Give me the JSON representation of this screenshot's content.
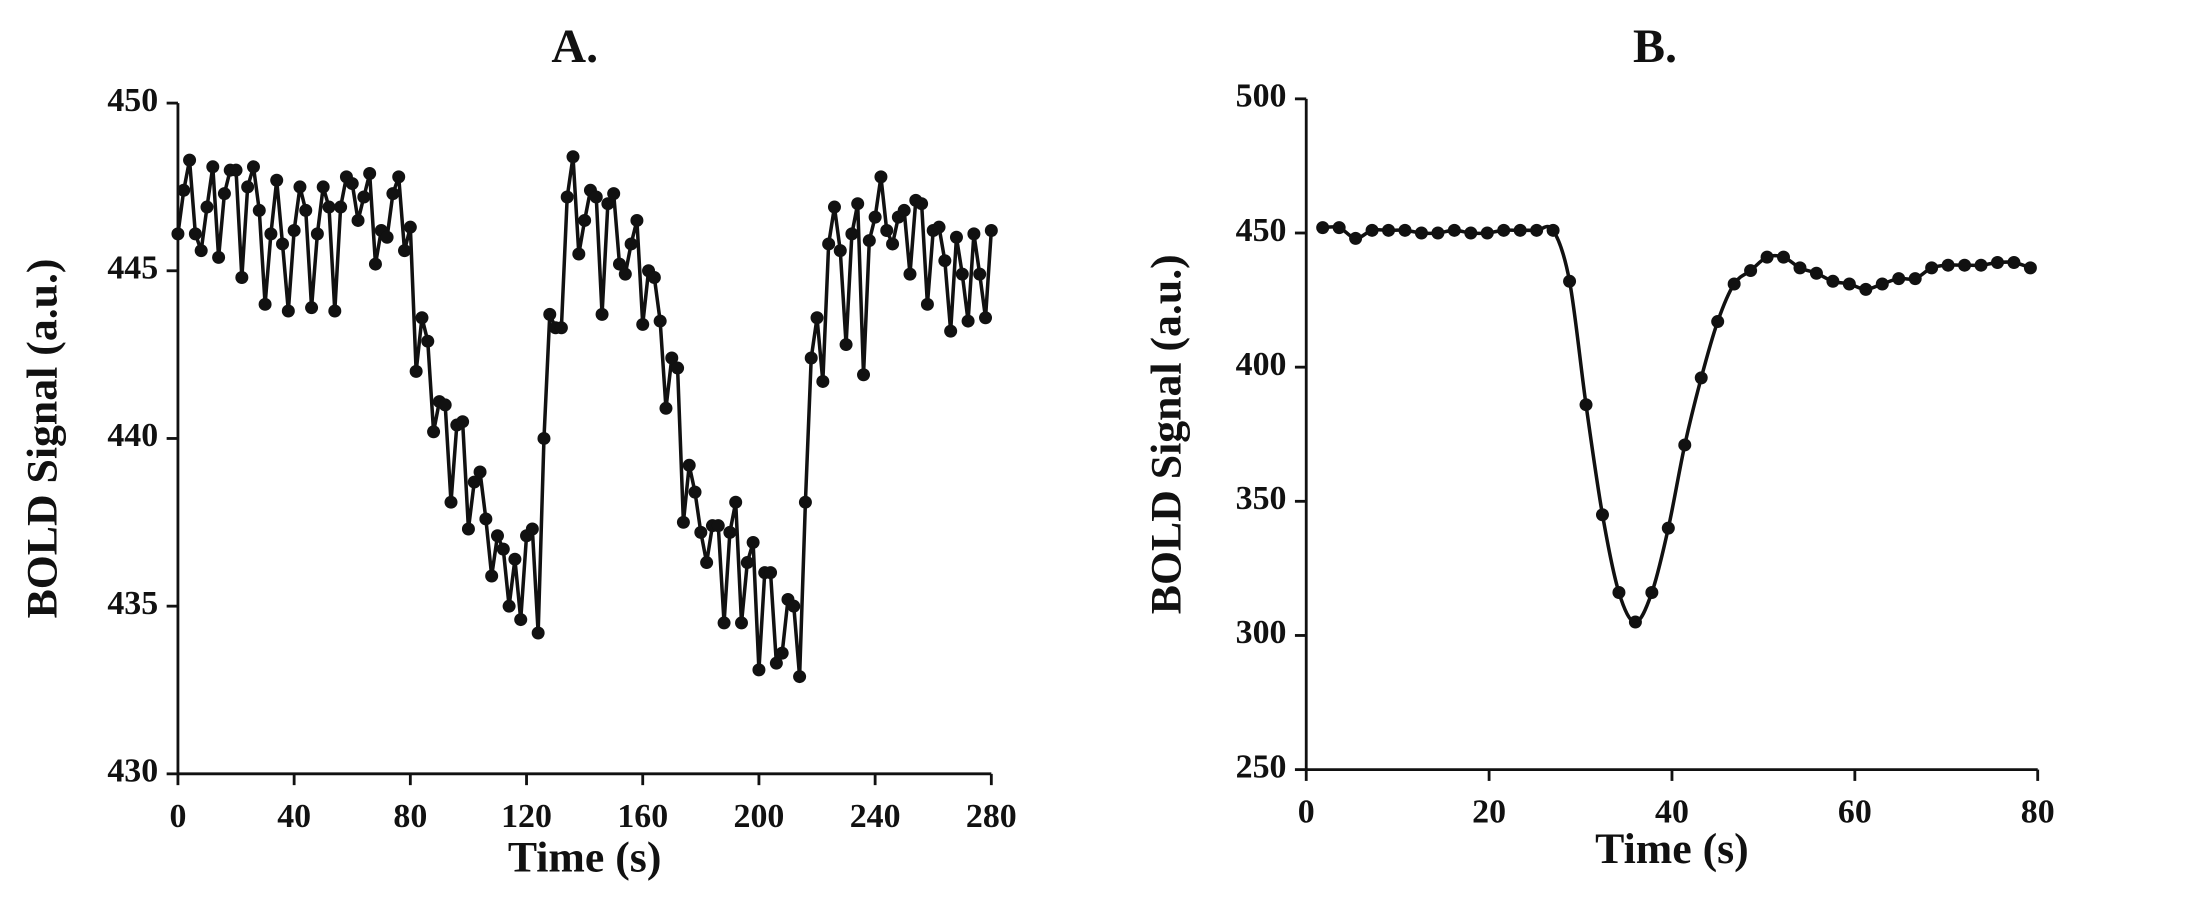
{
  "chart_data": [
    {
      "type": "line",
      "title": "A.",
      "x_label": "Time (s)",
      "y_label": "BOLD Signal (a.u.)",
      "x": [
        0,
        2,
        4,
        6,
        8,
        10,
        12,
        14,
        16,
        18,
        20,
        22,
        24,
        26,
        28,
        30,
        32,
        34,
        36,
        38,
        40,
        42,
        44,
        46,
        48,
        50,
        52,
        54,
        56,
        58,
        60,
        62,
        64,
        66,
        68,
        70,
        72,
        74,
        76,
        78,
        80,
        82,
        84,
        86,
        88,
        90,
        92,
        94,
        96,
        98,
        100,
        102,
        104,
        106,
        108,
        110,
        112,
        114,
        116,
        118,
        120,
        122,
        124,
        126,
        128,
        130,
        132,
        134,
        136,
        138,
        140,
        142,
        144,
        146,
        148,
        150,
        152,
        154,
        156,
        158,
        160,
        162,
        164,
        166,
        168,
        170,
        172,
        174,
        176,
        178,
        180,
        182,
        184,
        186,
        188,
        190,
        192,
        194,
        196,
        198,
        200,
        202,
        204,
        206,
        208,
        210,
        212,
        214,
        216,
        218,
        220,
        222,
        224,
        226,
        228,
        230,
        232,
        234,
        236,
        238,
        240,
        242,
        244,
        246,
        248,
        250,
        252,
        254,
        256,
        258,
        260,
        262,
        264,
        266,
        268,
        270,
        272,
        274,
        276,
        278,
        280
      ],
      "series": [
        {
          "name": "BOLD",
          "color": "#111111",
          "values": [
            446.1,
            447.4,
            448.3,
            446.1,
            445.6,
            446.9,
            448.1,
            445.4,
            447.3,
            448.0,
            448.0,
            444.8,
            447.5,
            448.1,
            446.8,
            444.0,
            446.1,
            447.7,
            445.8,
            443.8,
            446.2,
            447.5,
            446.8,
            443.9,
            446.1,
            447.5,
            446.9,
            443.8,
            446.9,
            447.8,
            447.6,
            446.5,
            447.2,
            447.9,
            445.2,
            446.2,
            446.0,
            447.3,
            447.8,
            445.6,
            446.3,
            442.0,
            443.6,
            442.9,
            440.2,
            441.1,
            441.0,
            438.1,
            440.4,
            440.5,
            437.3,
            438.7,
            439.0,
            437.6,
            435.9,
            437.1,
            436.7,
            435.0,
            436.4,
            434.6,
            437.1,
            437.3,
            434.2,
            440.0,
            443.7,
            443.3,
            443.3,
            447.2,
            448.4,
            445.5,
            446.5,
            447.4,
            447.2,
            443.7,
            447.0,
            447.3,
            445.2,
            444.9,
            445.8,
            446.5,
            443.4,
            445.0,
            444.8,
            443.5,
            440.9,
            442.4,
            442.1,
            437.5,
            439.2,
            438.4,
            437.2,
            436.3,
            437.4,
            437.4,
            434.5,
            437.2,
            438.1,
            434.5,
            436.3,
            436.9,
            433.1,
            436.0,
            436.0,
            433.3,
            433.6,
            435.2,
            435.0,
            432.9,
            438.1,
            442.4,
            443.6,
            441.7,
            445.8,
            446.9,
            445.6,
            442.8,
            446.1,
            447.0,
            441.9,
            445.9,
            446.6,
            447.8,
            446.2,
            445.8,
            446.6,
            446.8,
            444.9,
            447.1,
            447.0,
            444.0,
            446.2,
            446.3,
            445.3,
            443.2,
            446.0,
            444.9,
            443.5,
            446.1,
            444.9,
            443.6,
            446.2
          ]
        }
      ],
      "xlim": [
        0,
        280
      ],
      "xticks": [
        0,
        40,
        80,
        120,
        160,
        200,
        240,
        280
      ],
      "ylim": [
        430,
        450
      ],
      "yticks": [
        430,
        435,
        440,
        445,
        450
      ],
      "smooth": false
    },
    {
      "type": "line",
      "title": "B.",
      "x_label": "Time (s)",
      "y_label": "BOLD Signal (a.u.)",
      "x": [
        1.8,
        3.6,
        5.4,
        7.2,
        9,
        10.8,
        12.6,
        14.4,
        16.2,
        18,
        19.8,
        21.6,
        23.4,
        25.2,
        27,
        28.8,
        30.6,
        32.4,
        34.2,
        36,
        37.8,
        39.6,
        41.4,
        43.2,
        45,
        46.8,
        48.6,
        50.4,
        52.2,
        54,
        55.8,
        57.6,
        59.4,
        61.2,
        63,
        64.8,
        66.6,
        68.4,
        70.2,
        72,
        73.8,
        75.6,
        77.4,
        79.2
      ],
      "series": [
        {
          "name": "BOLD",
          "color": "#111111",
          "values": [
            452,
            452,
            448,
            451,
            451,
            451,
            450,
            450,
            451,
            450,
            450,
            451,
            451,
            451,
            451,
            432,
            386,
            345,
            316,
            305,
            316,
            340,
            371,
            396,
            417,
            431,
            436,
            441,
            441,
            437,
            435,
            432,
            431,
            429,
            431,
            433,
            433,
            437,
            438,
            438,
            438,
            439,
            439,
            437
          ]
        }
      ],
      "xlim": [
        0,
        80
      ],
      "xticks": [
        0,
        20,
        40,
        60,
        80
      ],
      "ylim": [
        250,
        500
      ],
      "yticks": [
        250,
        300,
        350,
        400,
        450,
        500
      ],
      "smooth": true
    }
  ]
}
